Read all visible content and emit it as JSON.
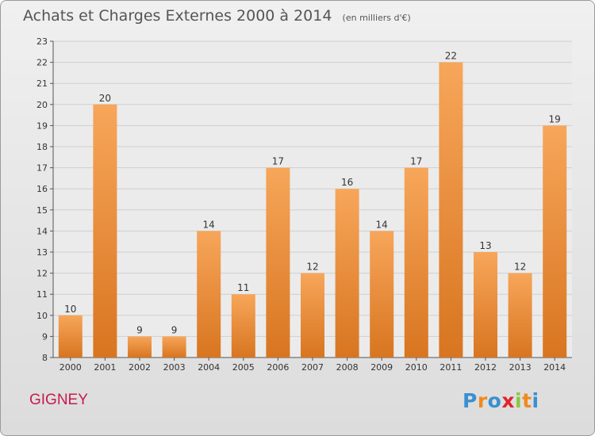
{
  "header": {
    "title": "Achats et Charges Externes 2000 à 2014",
    "unit": "(en milliers d'€)"
  },
  "footer": {
    "commune": "GIGNEY",
    "brand_letters": [
      "P",
      "r",
      "o",
      "x",
      "i",
      "t",
      "i"
    ]
  },
  "colors": {
    "bar_light": "#f7a65a",
    "bar_dark": "#d87520",
    "brand_colors": [
      "#3a8fd1",
      "#f08a1c",
      "#3a8fd1",
      "#e0252b",
      "#8dc63f",
      "#f08a1c",
      "#3a8fd1"
    ]
  },
  "chart_data": {
    "type": "bar",
    "title": "Achats et Charges Externes 2000 à 2014",
    "categories": [
      "2000",
      "2001",
      "2002",
      "2003",
      "2004",
      "2005",
      "2006",
      "2007",
      "2008",
      "2009",
      "2010",
      "2011",
      "2012",
      "2013",
      "2014"
    ],
    "values": [
      10,
      20,
      9,
      9,
      14,
      11,
      17,
      12,
      16,
      14,
      17,
      22,
      13,
      12,
      19
    ],
    "ylim": [
      8,
      23
    ],
    "yticks": [
      "8",
      "9",
      "10",
      "11",
      "12",
      "13",
      "14",
      "15",
      "16",
      "17",
      "18",
      "19",
      "20",
      "21",
      "22",
      "23"
    ],
    "grid": true
  }
}
